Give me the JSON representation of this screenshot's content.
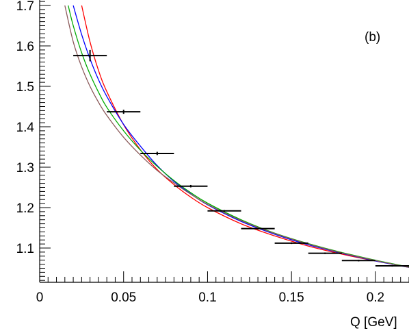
{
  "chart_data": {
    "type": "line",
    "panel_label": "(b)",
    "xlabel": "Q [GeV]",
    "ylabel": "",
    "xlim": [
      0,
      0.22
    ],
    "ylim": [
      1.02,
      1.7
    ],
    "x_ticks": [
      "0",
      "0.05",
      "0.1",
      "0.15",
      "0.2"
    ],
    "y_ticks": [
      "1.1",
      "1.2",
      "1.3",
      "1.4",
      "1.5",
      "1.6",
      "1.7"
    ],
    "grid": false,
    "legend": "none",
    "data_points": [
      {
        "x": 0.03,
        "y": 1.576,
        "xerr": 0.01,
        "yerr": 0.014
      },
      {
        "x": 0.05,
        "y": 1.437,
        "xerr": 0.01,
        "yerr": 0.005
      },
      {
        "x": 0.07,
        "y": 1.334,
        "xerr": 0.01,
        "yerr": 0.004
      },
      {
        "x": 0.09,
        "y": 1.253,
        "xerr": 0.01,
        "yerr": 0.003
      },
      {
        "x": 0.11,
        "y": 1.192,
        "xerr": 0.01,
        "yerr": 0.002
      },
      {
        "x": 0.13,
        "y": 1.148,
        "xerr": 0.01,
        "yerr": 0.002
      },
      {
        "x": 0.15,
        "y": 1.112,
        "xerr": 0.01,
        "yerr": 0.002
      },
      {
        "x": 0.17,
        "y": 1.087,
        "xerr": 0.01,
        "yerr": 0.002
      },
      {
        "x": 0.19,
        "y": 1.069,
        "xerr": 0.01,
        "yerr": 0.002
      },
      {
        "x": 0.21,
        "y": 1.056,
        "xerr": 0.01,
        "yerr": 0.002
      }
    ],
    "series": [
      {
        "color": "#ff0000",
        "x": [
          0.025,
          0.03,
          0.035,
          0.04,
          0.05,
          0.06,
          0.07,
          0.08,
          0.09,
          0.1,
          0.12,
          0.14,
          0.16,
          0.18,
          0.2,
          0.22
        ],
        "y": [
          1.7,
          1.61,
          1.54,
          1.487,
          1.405,
          1.343,
          1.294,
          1.257,
          1.226,
          1.2,
          1.16,
          1.13,
          1.105,
          1.085,
          1.068,
          1.053
        ]
      },
      {
        "color": "#0000ff",
        "x": [
          0.02,
          0.025,
          0.03,
          0.035,
          0.04,
          0.05,
          0.06,
          0.07,
          0.08,
          0.09,
          0.1,
          0.12,
          0.14,
          0.16,
          0.18,
          0.2,
          0.22
        ],
        "y": [
          1.7,
          1.628,
          1.568,
          1.517,
          1.475,
          1.406,
          1.352,
          1.304,
          1.265,
          1.234,
          1.207,
          1.166,
          1.134,
          1.108,
          1.087,
          1.068,
          1.052
        ]
      },
      {
        "color": "#00aa00",
        "x": [
          0.017,
          0.02,
          0.025,
          0.03,
          0.035,
          0.04,
          0.05,
          0.06,
          0.07,
          0.08,
          0.09,
          0.1,
          0.12,
          0.14,
          0.16,
          0.18,
          0.2,
          0.22
        ],
        "y": [
          1.7,
          1.65,
          1.583,
          1.53,
          1.486,
          1.448,
          1.39,
          1.342,
          1.302,
          1.267,
          1.237,
          1.211,
          1.17,
          1.137,
          1.111,
          1.089,
          1.07,
          1.053
        ]
      },
      {
        "color": "#8b5a5a",
        "x": [
          0.015,
          0.02,
          0.025,
          0.03,
          0.035,
          0.04,
          0.05,
          0.06,
          0.07,
          0.08,
          0.09,
          0.1,
          0.12,
          0.14,
          0.16,
          0.18,
          0.2,
          0.22
        ],
        "y": [
          1.7,
          1.61,
          1.548,
          1.5,
          1.461,
          1.428,
          1.374,
          1.33,
          1.292,
          1.261,
          1.233,
          1.208,
          1.168,
          1.136,
          1.11,
          1.088,
          1.069,
          1.052
        ]
      }
    ]
  }
}
